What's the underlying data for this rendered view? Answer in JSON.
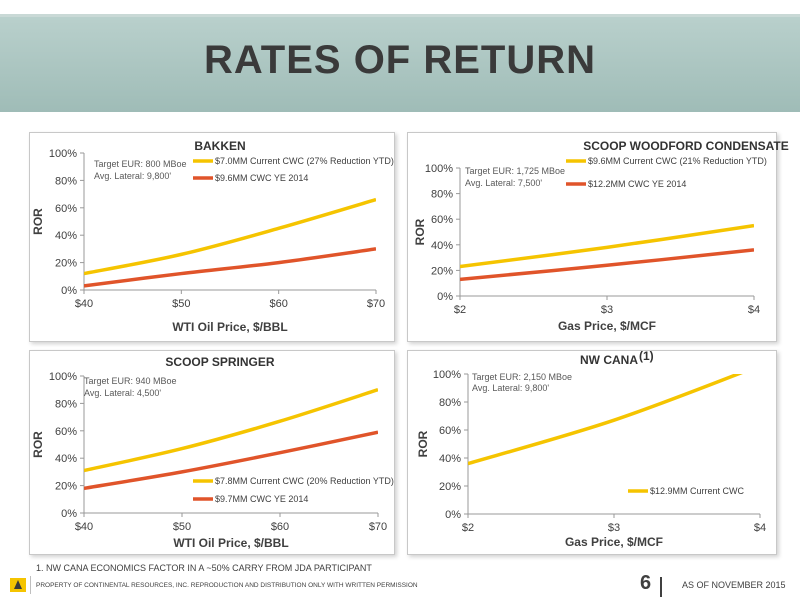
{
  "page": {
    "title": "RATES OF RETURN",
    "footnote": "1. NW CANA ECONOMICS FACTOR IN A ~50% CARRY FROM JDA PARTICIPANT",
    "copyright": "PROPERTY OF CONTINENTAL RESOURCES, INC. REPRODUCTION AND DISTRIBUTION ONLY WITH WRITTEN PERMISSION",
    "page_number": "6",
    "date_label": "AS OF NOVEMBER 2015"
  },
  "chart_data": [
    {
      "type": "line",
      "title": "BAKKEN",
      "title_sup": "",
      "xlabel": "WTI Oil Price, $/BBL",
      "ylabel": "ROR",
      "x": [
        40,
        50,
        60,
        70
      ],
      "xticks": [
        "$40",
        "$50",
        "$60",
        "$70"
      ],
      "xlim": [
        40,
        70
      ],
      "ylim": [
        0,
        100
      ],
      "yticks": [
        "0%",
        "20%",
        "40%",
        "60%",
        "80%",
        "100%"
      ],
      "notes": [
        "Target EUR: 800 MBoe",
        "Avg. Lateral: 9,800'"
      ],
      "series": [
        {
          "name": "$7.0MM Current CWC (27% Reduction YTD)",
          "color": "#f5c400",
          "values": [
            12,
            26,
            45,
            66
          ]
        },
        {
          "name": "$9.6MM CWC YE 2014",
          "color": "#e0542a",
          "values": [
            3,
            12,
            20,
            30
          ]
        }
      ]
    },
    {
      "type": "line",
      "title": "SCOOP WOODFORD CONDENSATE",
      "title_sup": "",
      "xlabel": "Gas Price, $/MCF",
      "ylabel": "ROR",
      "x": [
        2,
        3,
        4
      ],
      "xticks": [
        "$2",
        "$3",
        "$4"
      ],
      "xlim": [
        2,
        4
      ],
      "ylim": [
        0,
        100
      ],
      "yticks": [
        "0%",
        "20%",
        "40%",
        "60%",
        "80%",
        "100%"
      ],
      "notes": [
        "Target EUR: 1,725 MBoe",
        "Avg. Lateral: 7,500'"
      ],
      "series": [
        {
          "name": "$9.6MM Current CWC (21% Reduction YTD)",
          "color": "#f5c400",
          "values": [
            23,
            38,
            55
          ]
        },
        {
          "name": "$12.2MM CWC YE 2014",
          "color": "#e0542a",
          "values": [
            13,
            24,
            36
          ]
        }
      ]
    },
    {
      "type": "line",
      "title": "SCOOP SPRINGER",
      "title_sup": "",
      "xlabel": "WTI Oil Price, $/BBL",
      "ylabel": "ROR",
      "x": [
        40,
        50,
        60,
        70
      ],
      "xticks": [
        "$40",
        "$50",
        "$60",
        "$70"
      ],
      "xlim": [
        40,
        70
      ],
      "ylim": [
        0,
        100
      ],
      "yticks": [
        "0%",
        "20%",
        "40%",
        "60%",
        "80%",
        "100%"
      ],
      "notes": [
        "Target EUR: 940 MBoe",
        "Avg. Lateral: 4,500'"
      ],
      "series": [
        {
          "name": "$7.8MM Current CWC (20% Reduction YTD)",
          "color": "#f5c400",
          "values": [
            31,
            47,
            67,
            90
          ]
        },
        {
          "name": "$9.7MM CWC YE 2014",
          "color": "#e0542a",
          "values": [
            18,
            30,
            44,
            59
          ]
        }
      ]
    },
    {
      "type": "line",
      "title": "NW CANA",
      "title_sup": "(1)",
      "xlabel": "Gas Price, $/MCF",
      "ylabel": "ROR",
      "x": [
        2,
        3,
        4
      ],
      "xticks": [
        "$2",
        "$3",
        "$4"
      ],
      "xlim": [
        2,
        4
      ],
      "ylim": [
        0,
        100
      ],
      "yticks": [
        "0%",
        "20%",
        "40%",
        "60%",
        "80%",
        "100%"
      ],
      "notes": [
        "Target EUR: 2,150 MBoe",
        "Avg. Lateral: 9,800'"
      ],
      "series": [
        {
          "name": "$12.9MM Current CWC",
          "color": "#f5c400",
          "values": [
            36,
            67,
            106
          ]
        }
      ]
    }
  ]
}
